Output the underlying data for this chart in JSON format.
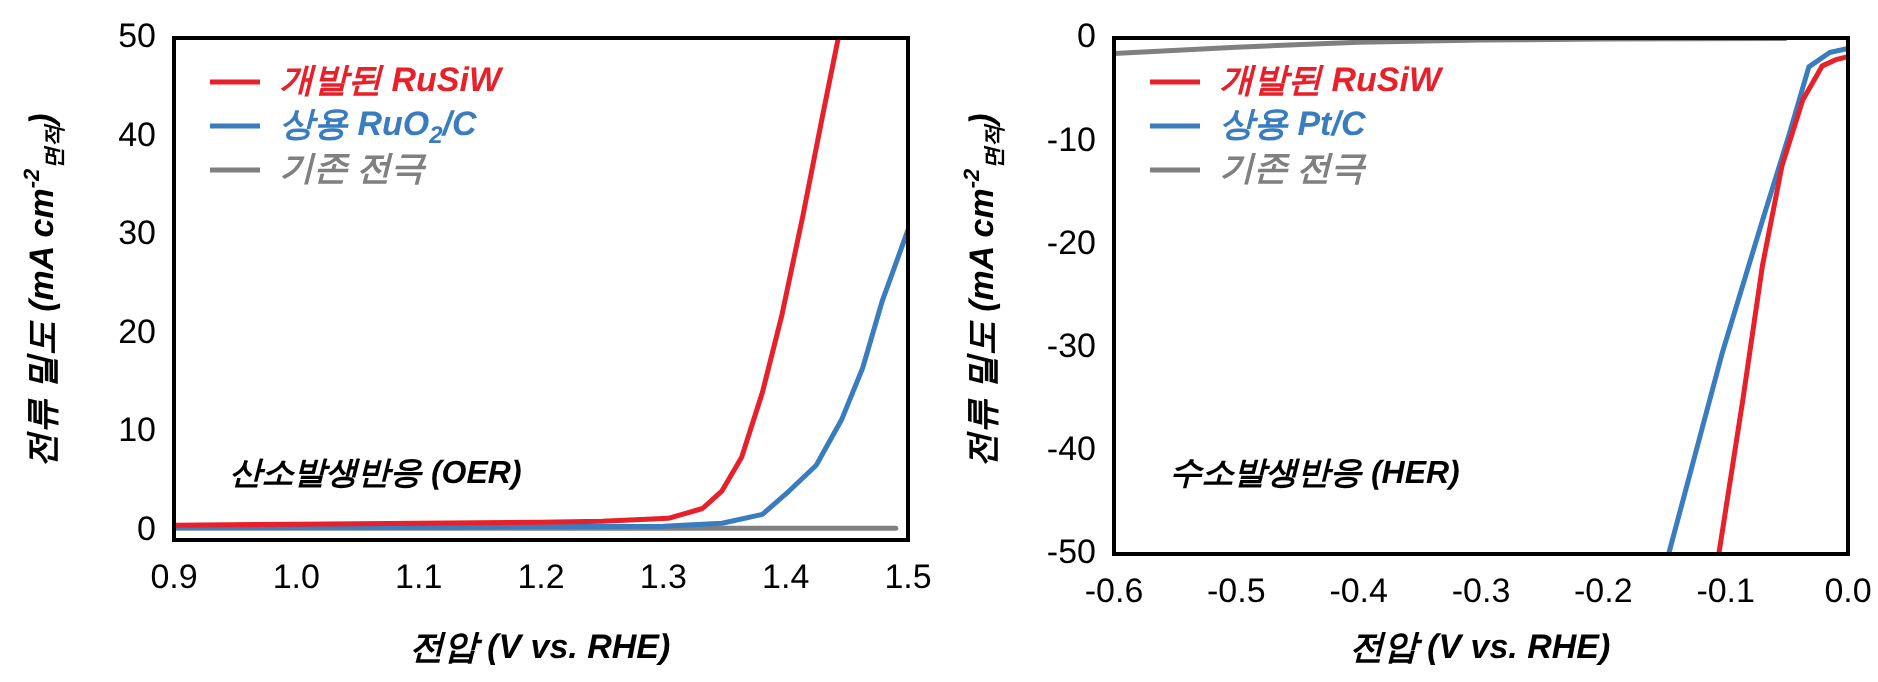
{
  "chart_data": [
    {
      "type": "line",
      "xlabel": "전압 (V vs. RHE)",
      "ylabel": "전류 밀도 (mA cm$^{-2}$$_{면적}$)",
      "annotations": [
        "산소발생반응 (OER)"
      ],
      "legend": "top left",
      "marker": "none",
      "xlim": [
        0.9,
        1.5
      ],
      "ylim": [
        -1,
        50
      ],
      "xticks": [
        0.9,
        {
          "value": 1,
          "label": "1.0"
        },
        1.1,
        1.2,
        1.3,
        1.4,
        1.5
      ],
      "yticks": [
        0,
        10,
        20,
        30,
        40,
        50
      ],
      "series": [
        {
          "name": "개발된 RuSiW",
          "color": "#e8202a",
          "x": [
            0.9,
            1.0,
            1.1,
            1.2,
            1.25,
            1.304,
            1.332,
            1.348,
            1.364,
            1.381,
            1.397,
            1.414,
            1.43,
            1.443
          ],
          "values": [
            0.5,
            0.6,
            0.7,
            0.8,
            0.9,
            1.2,
            2.2,
            4,
            7.4,
            14,
            21.9,
            31.9,
            42,
            50
          ]
        },
        {
          "name": "상용 RuO$_{2}$/C",
          "color": "#3a7cc0",
          "x": [
            0.9,
            1.1,
            1.3,
            1.348,
            1.381,
            1.403,
            1.425,
            1.446,
            1.463,
            1.479,
            1.5
          ],
          "values": [
            0.3,
            0.3,
            0.4,
            0.7,
            1.6,
            4,
            6.6,
            11.3,
            16.5,
            23.3,
            30.5
          ]
        },
        {
          "name": "기존 전극",
          "color": "#808080",
          "x": [
            0.9,
            1.2,
            1.49
          ],
          "values": [
            0.2,
            0.2,
            0.2
          ]
        }
      ]
    },
    {
      "type": "line",
      "xlabel": "전압 (V vs. RHE)",
      "ylabel": "전류 밀도 (mA cm$^{-2}$$_{면적}$)",
      "annotations": [
        "수소발생반응 (HER)"
      ],
      "legend": "top left",
      "marker": "none",
      "xlim": [
        -0.6,
        0
      ],
      "ylim": [
        -50,
        0
      ],
      "xticks": [
        -0.6,
        -0.5,
        -0.4,
        -0.3,
        -0.2,
        -0.1,
        {
          "value": 0,
          "label": "0.0"
        }
      ],
      "yticks": [
        -50,
        -40,
        -30,
        -20,
        -10,
        0
      ],
      "series": [
        {
          "name": "개발된 RuSiW",
          "color": "#e8202a",
          "x": [
            -0.1056,
            -0.086,
            -0.07,
            -0.054,
            -0.037,
            -0.021,
            -0.01,
            0
          ],
          "values": [
            -50,
            -35.1,
            -22.1,
            -12.4,
            -6,
            -2.7,
            -2.1,
            -1.8
          ]
        },
        {
          "name": "상용 Pt/C",
          "color": "#3a7cc0",
          "x": [
            -0.1466,
            -0.103,
            -0.07,
            -0.048,
            -0.032,
            -0.015,
            0
          ],
          "values": [
            -50,
            -30.6,
            -17.7,
            -9.3,
            -2.8,
            -1.4,
            -1
          ]
        },
        {
          "name": "기존 전극",
          "color": "#808080",
          "x": [
            -0.6,
            -0.5,
            -0.4,
            -0.3,
            -0.2,
            -0.051
          ],
          "values": [
            -1.5,
            -0.9,
            -0.4,
            -0.2,
            -0.1,
            -0.05
          ]
        }
      ]
    }
  ]
}
